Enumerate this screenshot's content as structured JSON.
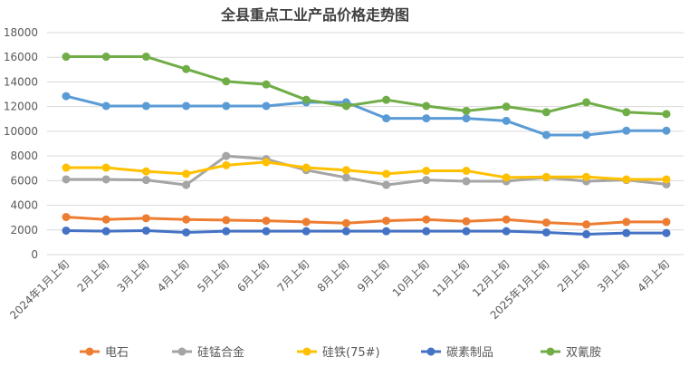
{
  "chart_data": {
    "type": "line",
    "title": "全县重点工业产品价格走势图",
    "xlabel": "",
    "ylabel": "",
    "ylim": [
      0,
      18000
    ],
    "yticks": [
      0,
      2000,
      4000,
      6000,
      8000,
      10000,
      12000,
      14000,
      16000,
      18000
    ],
    "grid": true,
    "legend_position": "bottom",
    "categories": [
      "2024年1月上旬",
      "2月上旬",
      "3月上旬",
      "4月上旬",
      "5月上旬",
      "6月上旬",
      "7月上旬",
      "8月上旬",
      "9月上旬",
      "10月上旬",
      "11月上旬",
      "12月上旬",
      "2025年1月上旬",
      "2月上旬",
      "3月上旬",
      "4月上旬"
    ],
    "series": [
      {
        "name": "",
        "color": "#5B9BD5",
        "in_legend": false,
        "values": [
          12850,
          12050,
          12050,
          12050,
          12050,
          12050,
          12350,
          12350,
          11050,
          11050,
          11050,
          10850,
          9700,
          9700,
          10050,
          10050
        ]
      },
      {
        "name": "电石",
        "color": "#ED7D31",
        "in_legend": true,
        "values": [
          3050,
          2850,
          2950,
          2850,
          2800,
          2750,
          2650,
          2550,
          2750,
          2850,
          2700,
          2850,
          2600,
          2450,
          2650,
          2650
        ]
      },
      {
        "name": "硅锰合金",
        "color": "#A5A5A5",
        "in_legend": true,
        "values": [
          6100,
          6100,
          6050,
          5650,
          8000,
          7750,
          6850,
          6250,
          5650,
          6050,
          5950,
          5950,
          6250,
          5950,
          6050,
          5700
        ]
      },
      {
        "name": "硅铁(75#)",
        "color": "#FFC000",
        "in_legend": true,
        "values": [
          7050,
          7050,
          6750,
          6550,
          7250,
          7500,
          7050,
          6850,
          6550,
          6800,
          6800,
          6250,
          6300,
          6300,
          6100,
          6100
        ]
      },
      {
        "name": "碳素制品",
        "color": "#4472C4",
        "in_legend": true,
        "values": [
          1950,
          1900,
          1950,
          1800,
          1900,
          1900,
          1900,
          1900,
          1900,
          1900,
          1900,
          1900,
          1800,
          1650,
          1750,
          1750
        ]
      },
      {
        "name": "双氰胺",
        "color": "#70AD47",
        "in_legend": true,
        "values": [
          16050,
          16050,
          16050,
          15050,
          14050,
          13800,
          12550,
          12050,
          12550,
          12050,
          11650,
          12000,
          11550,
          12350,
          11550,
          11400
        ]
      }
    ]
  }
}
